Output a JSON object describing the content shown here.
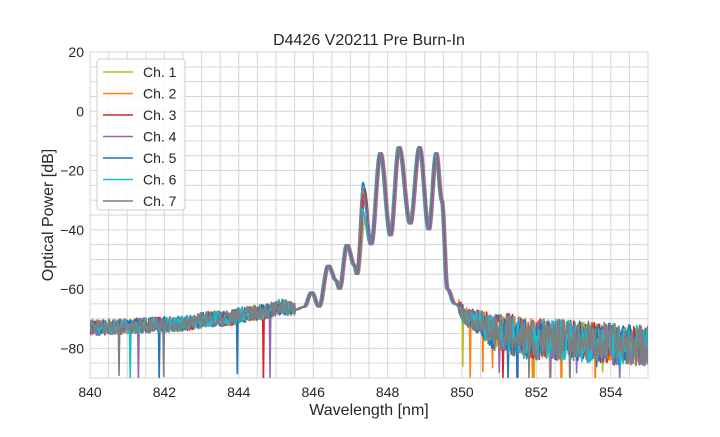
{
  "chart_data": {
    "type": "line",
    "title": "D4426 V20211 Pre Burn-In",
    "xlabel": "Wavelength [nm]",
    "ylabel": "Optical Power [dB]",
    "xlim": [
      840,
      855
    ],
    "ylim": [
      -90,
      20
    ],
    "xticks": [
      840,
      842,
      844,
      846,
      848,
      850,
      852,
      854
    ],
    "yticks": [
      20,
      0,
      -20,
      -40,
      -60,
      -80
    ],
    "grid": true,
    "legend_position": "top-left",
    "base_spectrum": {
      "x": [
        840,
        842,
        843.5,
        844.5,
        845.2,
        845.5,
        845.75,
        845.95,
        846.15,
        846.4,
        846.6,
        846.7,
        846.9,
        847.1,
        847.17,
        847.35,
        847.55,
        847.8,
        848.07,
        848.3,
        848.6,
        848.85,
        849.1,
        849.3,
        849.45,
        849.6,
        849.8,
        850.2,
        851,
        852,
        855
      ],
      "y": [
        -73,
        -72,
        -70,
        -68,
        -66,
        -67,
        -66,
        -61,
        -66,
        -52,
        -57,
        -60,
        -45,
        -52,
        -55,
        -28,
        -45,
        -14,
        -42,
        -12,
        -38,
        -12,
        -40,
        -14,
        -30,
        -60,
        -65,
        -70,
        -75,
        -77,
        -79
      ]
    },
    "series": [
      {
        "name": "Ch. 1",
        "color": "#bcbd22",
        "wavelength_shift_nm": 0.05,
        "peak_847_35_db": -36
      },
      {
        "name": "Ch. 2",
        "color": "#ff7f0e",
        "wavelength_shift_nm": 0.02,
        "peak_847_35_db": -27
      },
      {
        "name": "Ch. 3",
        "color": "#d62728",
        "wavelength_shift_nm": 0.03,
        "peak_847_35_db": -26
      },
      {
        "name": "Ch. 4",
        "color": "#9467bd",
        "wavelength_shift_nm": 0.04,
        "peak_847_35_db": -30
      },
      {
        "name": "Ch. 5",
        "color": "#1f77b4",
        "wavelength_shift_nm": -0.01,
        "peak_847_35_db": -24
      },
      {
        "name": "Ch. 6",
        "color": "#17becf",
        "wavelength_shift_nm": -0.03,
        "peak_847_35_db": -33
      },
      {
        "name": "Ch. 7",
        "color": "#7f7f7f",
        "wavelength_shift_nm": -0.02,
        "peak_847_35_db": -26
      }
    ]
  }
}
